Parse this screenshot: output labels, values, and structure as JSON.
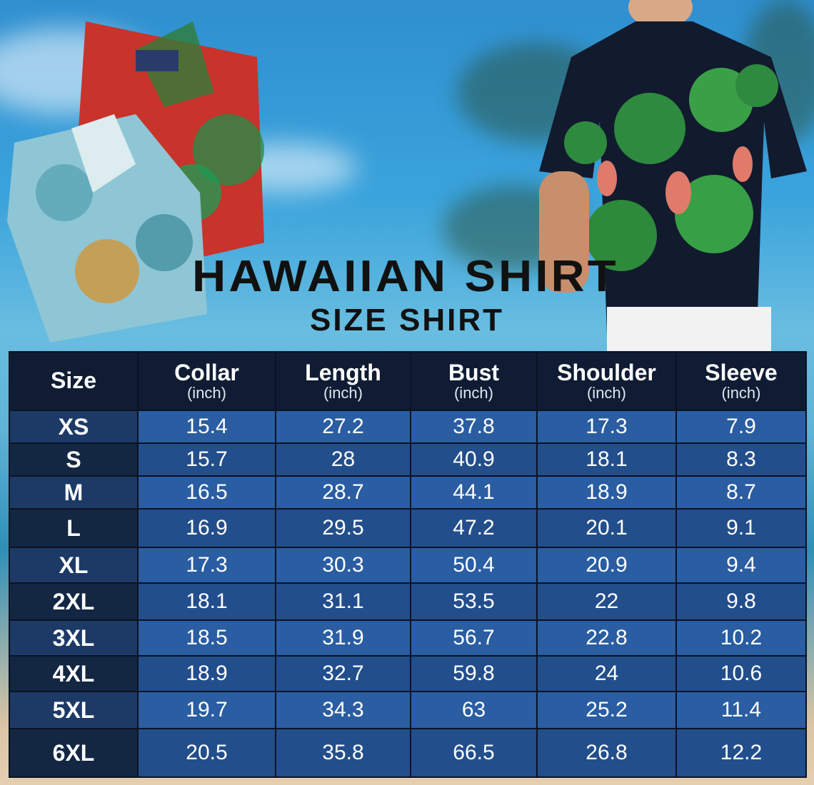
{
  "title": "HAWAIIAN SHIRT",
  "subtitle": "SIZE SHIRT",
  "table": {
    "headers": [
      {
        "label": "Size",
        "unit": ""
      },
      {
        "label": "Collar",
        "unit": "(inch)"
      },
      {
        "label": "Length",
        "unit": "(inch)"
      },
      {
        "label": "Bust",
        "unit": "(inch)"
      },
      {
        "label": "Shoulder",
        "unit": "(inch)"
      },
      {
        "label": "Sleeve",
        "unit": "(inch)"
      }
    ],
    "rows": [
      [
        "XS",
        "15.4",
        "27.2",
        "37.8",
        "17.3",
        "7.9"
      ],
      [
        "S",
        "15.7",
        "28",
        "40.9",
        "18.1",
        "8.3"
      ],
      [
        "M",
        "16.5",
        "28.7",
        "44.1",
        "18.9",
        "8.7"
      ],
      [
        "L",
        "16.9",
        "29.5",
        "47.2",
        "20.1",
        "9.1"
      ],
      [
        "XL",
        "17.3",
        "30.3",
        "50.4",
        "20.9",
        "9.4"
      ],
      [
        "2XL",
        "18.1",
        "31.1",
        "53.5",
        "22",
        "9.8"
      ],
      [
        "3XL",
        "18.5",
        "31.9",
        "56.7",
        "22.8",
        "10.2"
      ],
      [
        "4XL",
        "18.9",
        "32.7",
        "59.8",
        "24",
        "10.6"
      ],
      [
        "5XL",
        "19.7",
        "34.3",
        "63",
        "25.2",
        "11.4"
      ],
      [
        "6XL",
        "20.5",
        "35.8",
        "66.5",
        "26.8",
        "12.2"
      ]
    ]
  },
  "colors": {
    "header": "#0f1c33",
    "row_light": "#2a5da2",
    "row_dark": "#234e8c"
  }
}
